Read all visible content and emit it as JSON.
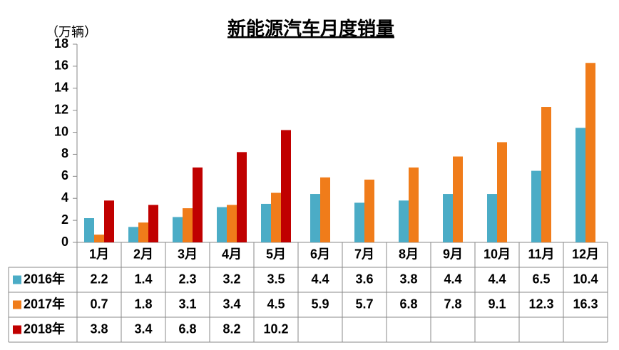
{
  "chart_data": {
    "type": "bar",
    "title": "新能源汽车月度销量",
    "y_label": "（万辆）",
    "categories": [
      "1月",
      "2月",
      "3月",
      "4月",
      "5月",
      "6月",
      "7月",
      "8月",
      "9月",
      "10月",
      "11月",
      "12月"
    ],
    "series": [
      {
        "name": "2016年",
        "color": "#4bacc6",
        "values": [
          2.2,
          1.4,
          2.3,
          3.2,
          3.5,
          4.4,
          3.6,
          3.8,
          4.4,
          4.4,
          6.5,
          10.4
        ]
      },
      {
        "name": "2017年",
        "color": "#f07c1a",
        "values": [
          0.7,
          1.8,
          3.1,
          3.4,
          4.5,
          5.9,
          5.7,
          6.8,
          7.8,
          9.1,
          12.3,
          16.3
        ]
      },
      {
        "name": "2018年",
        "color": "#c00000",
        "values": [
          3.8,
          3.4,
          6.8,
          8.2,
          10.2,
          null,
          null,
          null,
          null,
          null,
          null,
          null
        ]
      }
    ],
    "ylim": [
      0,
      18
    ],
    "yticks": [
      0,
      2,
      4,
      6,
      8,
      10,
      12,
      14,
      16,
      18
    ]
  }
}
